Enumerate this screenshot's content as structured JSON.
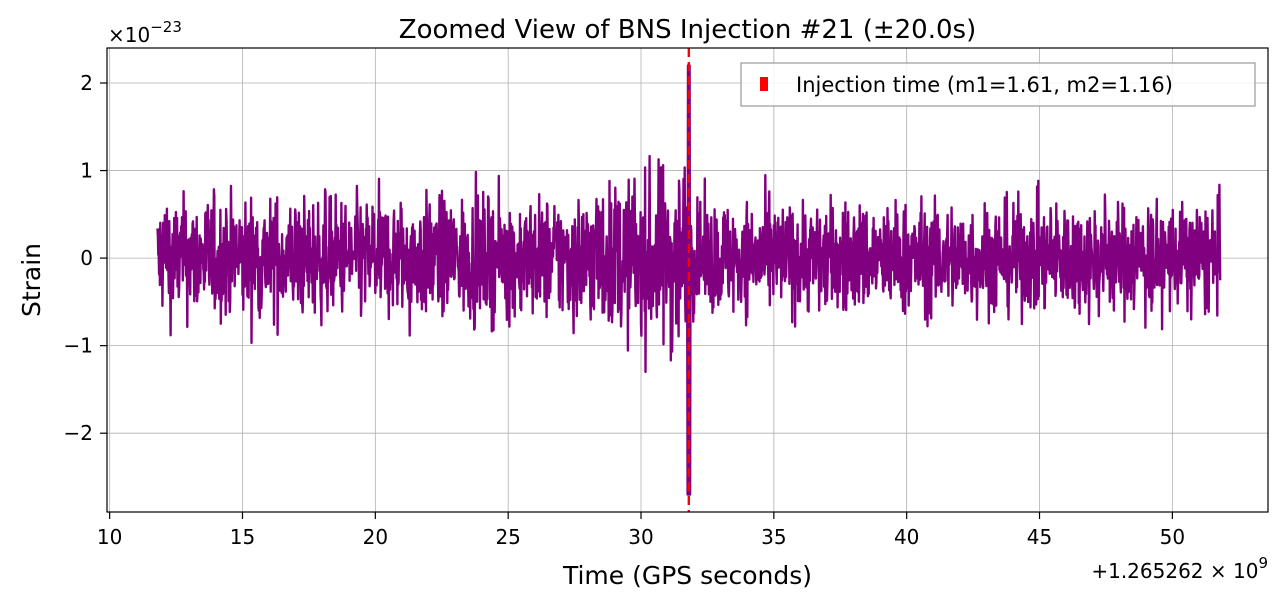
{
  "chart_data": {
    "type": "line",
    "title": "Zoomed View of BNS Injection #21 (±20.0s)",
    "xlabel": "Time (GPS seconds)",
    "ylabel": "Strain",
    "x_offset_label": "+1.265262 × 10",
    "x_offset_exponent": "9",
    "y_scale_label": "×10",
    "y_scale_exponent": "−23",
    "xlim": [
      9.9,
      53.6
    ],
    "ylim": [
      -2.9,
      2.4
    ],
    "xticks": [
      10,
      15,
      20,
      25,
      30,
      35,
      40,
      45,
      50
    ],
    "xtick_labels": [
      "10",
      "15",
      "20",
      "25",
      "30",
      "35",
      "40",
      "45",
      "50"
    ],
    "yticks": [
      -2,
      -1,
      0,
      1,
      2
    ],
    "ytick_labels": [
      "−2",
      "−1",
      "0",
      "1",
      "2"
    ],
    "grid": true,
    "legend_position": "top-right",
    "series": [
      {
        "name": "",
        "color": "#800080",
        "style": "strain-noise",
        "x_start": 11.8,
        "x_end": 51.8,
        "envelope_before": 0.7,
        "envelope_after": 0.65,
        "chirp_peak": [
          31.8,
          2.2,
          -2.7
        ]
      }
    ],
    "vline": {
      "x": 31.8,
      "color": "#ff0000",
      "style": "dashed",
      "label": "Injection time (m1=1.61, m2=1.16)"
    }
  }
}
